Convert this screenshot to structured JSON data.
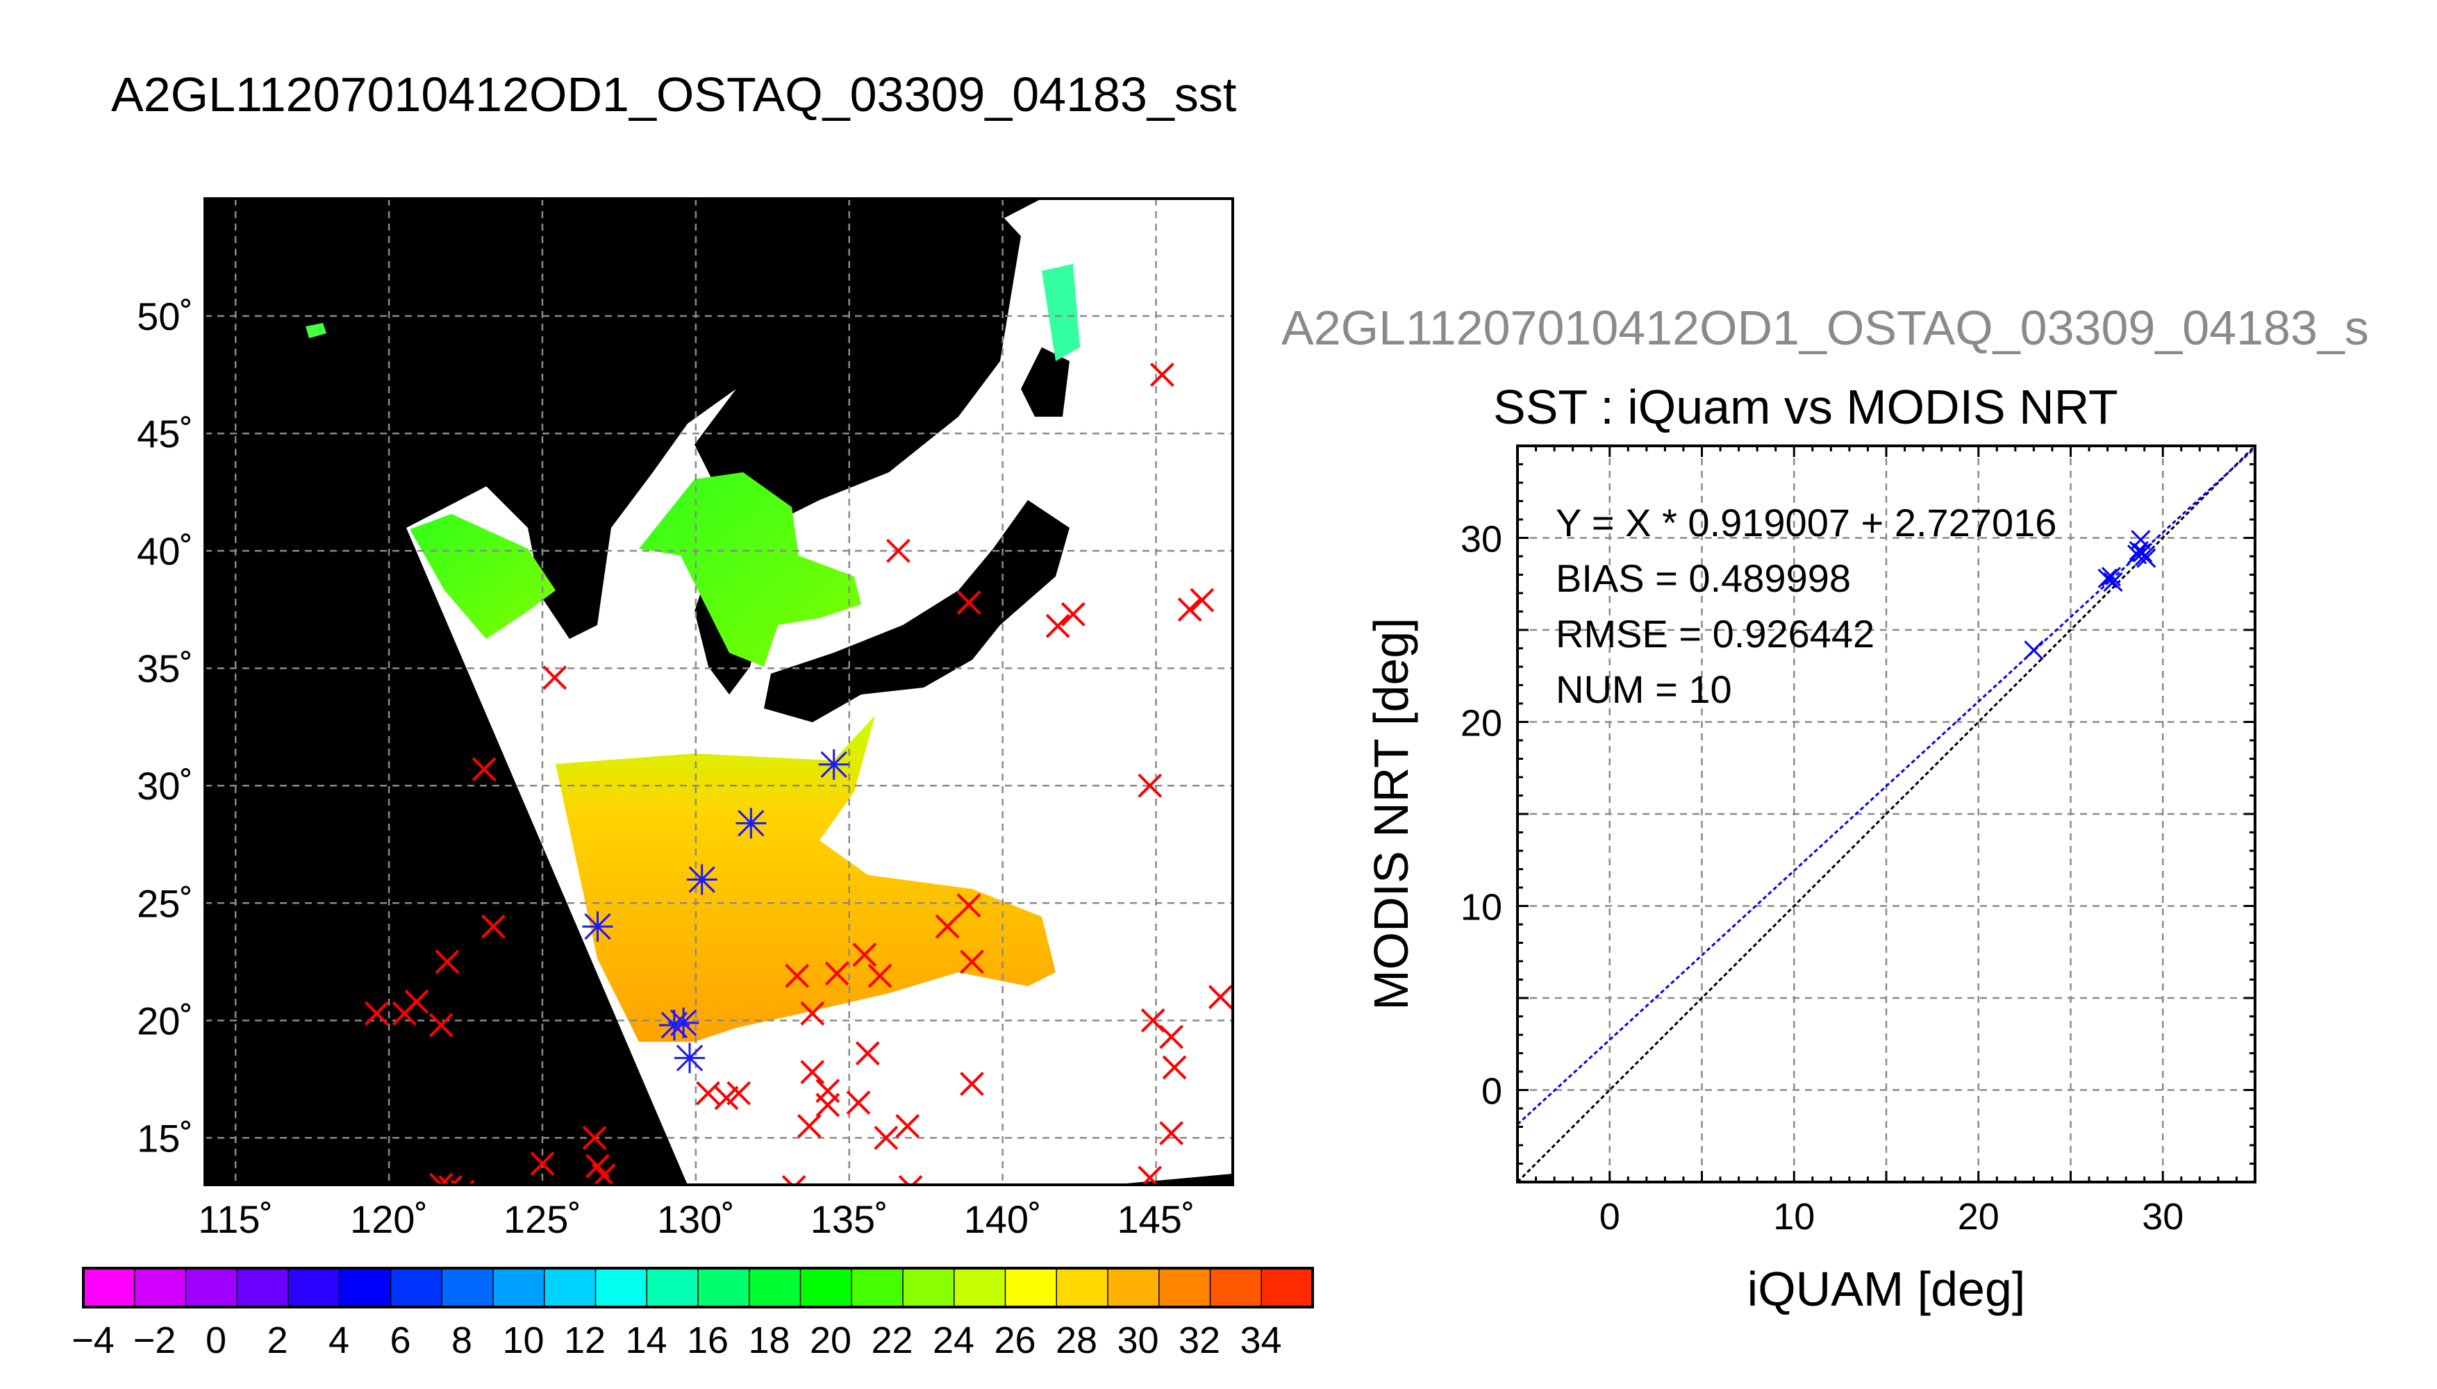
{
  "title": "A2GL11207010412OD1_OSTAQ_03309_04183_sst",
  "map": {
    "lon_ticks": [
      "115˚",
      "120˚",
      "125˚",
      "130˚",
      "135˚",
      "140˚",
      "145˚"
    ],
    "lat_ticks": [
      "50˚",
      "45˚",
      "40˚",
      "35˚",
      "30˚",
      "25˚",
      "20˚",
      "15˚"
    ],
    "extent": {
      "lon": [
        114,
        147.5
      ],
      "lat": [
        13,
        55
      ]
    },
    "colors": {
      "land": "#000000",
      "no_data": "#ffffff",
      "grid": "#8a8a8a",
      "match_marker": "#ff0000",
      "used_marker": "#1a1aff"
    }
  },
  "colorbar": {
    "labels": [
      "−4",
      "−2",
      "0",
      "2",
      "4",
      "6",
      "8",
      "10",
      "12",
      "14",
      "16",
      "18",
      "20",
      "22",
      "24",
      "26",
      "28",
      "30",
      "32",
      "34"
    ],
    "range": [
      -4,
      36
    ],
    "colors": [
      "#ff00ff",
      "#d100ff",
      "#a000ff",
      "#6a00ff",
      "#2a00ff",
      "#0000ff",
      "#0034ff",
      "#006aff",
      "#00a0ff",
      "#00d2ff",
      "#00ffee",
      "#00ffb0",
      "#00ff6e",
      "#00ff32",
      "#00ff00",
      "#44ff00",
      "#8aff00",
      "#c6ff00",
      "#ffff00",
      "#ffd800",
      "#ffb000",
      "#ff8400",
      "#ff5800",
      "#ff2a00"
    ]
  },
  "scatter": {
    "header": "A2GL11207010412OD1_OSTAQ_03309_04183_s",
    "title": "SST : iQuam vs MODIS NRT",
    "xlabel": "iQUAM [deg]",
    "ylabel": "MODIS NRT [deg]",
    "stats": [
      "Y = X * 0.919007 + 2.727016",
      "BIAS = 0.489998",
      "RMSE = 0.926442",
      "NUM = 10"
    ],
    "x_ticks": [
      "0",
      "10",
      "20",
      "30"
    ],
    "y_ticks": [
      "0",
      "10",
      "20",
      "30"
    ],
    "colors": {
      "points": "#0000ff",
      "fit_line": "#0000ff",
      "one_to_one": "#000000",
      "grid": "#8a8a8a"
    }
  },
  "chart_data": [
    {
      "type": "scatter",
      "title": "SST : iQuam vs MODIS NRT",
      "xlabel": "iQUAM [deg]",
      "ylabel": "MODIS NRT [deg]",
      "xlim": [
        -5,
        35
      ],
      "ylim": [
        -5,
        35
      ],
      "grid": true,
      "series": [
        {
          "x": [
            23.0,
            27.0,
            27.3,
            27.2,
            28.8,
            28.7,
            29.0,
            28.9,
            29.1,
            28.6
          ],
          "y": [
            23.9,
            27.8,
            27.6,
            27.9,
            29.9,
            29.3,
            29.0,
            29.2,
            28.9,
            29.1
          ]
        }
      ],
      "fit": {
        "slope": 0.919007,
        "intercept": 2.727016
      },
      "reference_line": {
        "slope": 1,
        "intercept": 0
      }
    },
    {
      "type": "scatter",
      "xlabel": "",
      "ylabel": "",
      "xlim": [
        114,
        147.5
      ],
      "ylim": [
        13,
        55
      ],
      "grid": true,
      "series": [
        {
          "marker": "x",
          "color": "#ff0000",
          "x": [
            136.6,
            145.2,
            146.1,
            146.5,
            138.9,
            142.3,
            141.8,
            125.4,
            123.1,
            144.8,
            123.4,
            121.9,
            119.6,
            120.5,
            120.9,
            121.7,
            133.3,
            134.6,
            133.8,
            136.0,
            138.9,
            139.0,
            138.2,
            135.5,
            133.8,
            134.3,
            135.3,
            133.7,
            131.0,
            130.4,
            131.4,
            134.3,
            135.6,
            139.0,
            144.9,
            145.5,
            145.6,
            147.1,
            145.5,
            144.8,
            126.7,
            126.8,
            127.0,
            125.0,
            122.0,
            122.4,
            136.9,
            137.0,
            136.2,
            133.2,
            121.7
          ],
          "y": [
            40.0,
            47.5,
            37.5,
            37.9,
            37.8,
            37.3,
            36.8,
            34.6,
            30.7,
            30.0,
            24.0,
            22.5,
            20.3,
            20.3,
            20.8,
            19.8,
            21.9,
            22.0,
            20.3,
            21.9,
            24.9,
            22.5,
            24.0,
            22.8,
            17.8,
            17.0,
            16.5,
            15.5,
            16.7,
            16.9,
            16.9,
            16.4,
            18.6,
            17.3,
            20.0,
            19.3,
            18.0,
            21.0,
            15.2,
            13.3,
            15.0,
            13.8,
            13.4,
            13.9,
            12.9,
            12.7,
            15.5,
            12.9,
            15.0,
            12.9,
            13.0
          ]
        },
        {
          "marker": "asterisk",
          "color": "#1a1aff",
          "x": [
            134.5,
            131.8,
            130.2,
            126.8,
            129.3,
            129.6,
            129.8
          ],
          "y": [
            30.9,
            28.4,
            26.0,
            24.0,
            19.8,
            19.9,
            18.4
          ]
        }
      ]
    }
  ]
}
